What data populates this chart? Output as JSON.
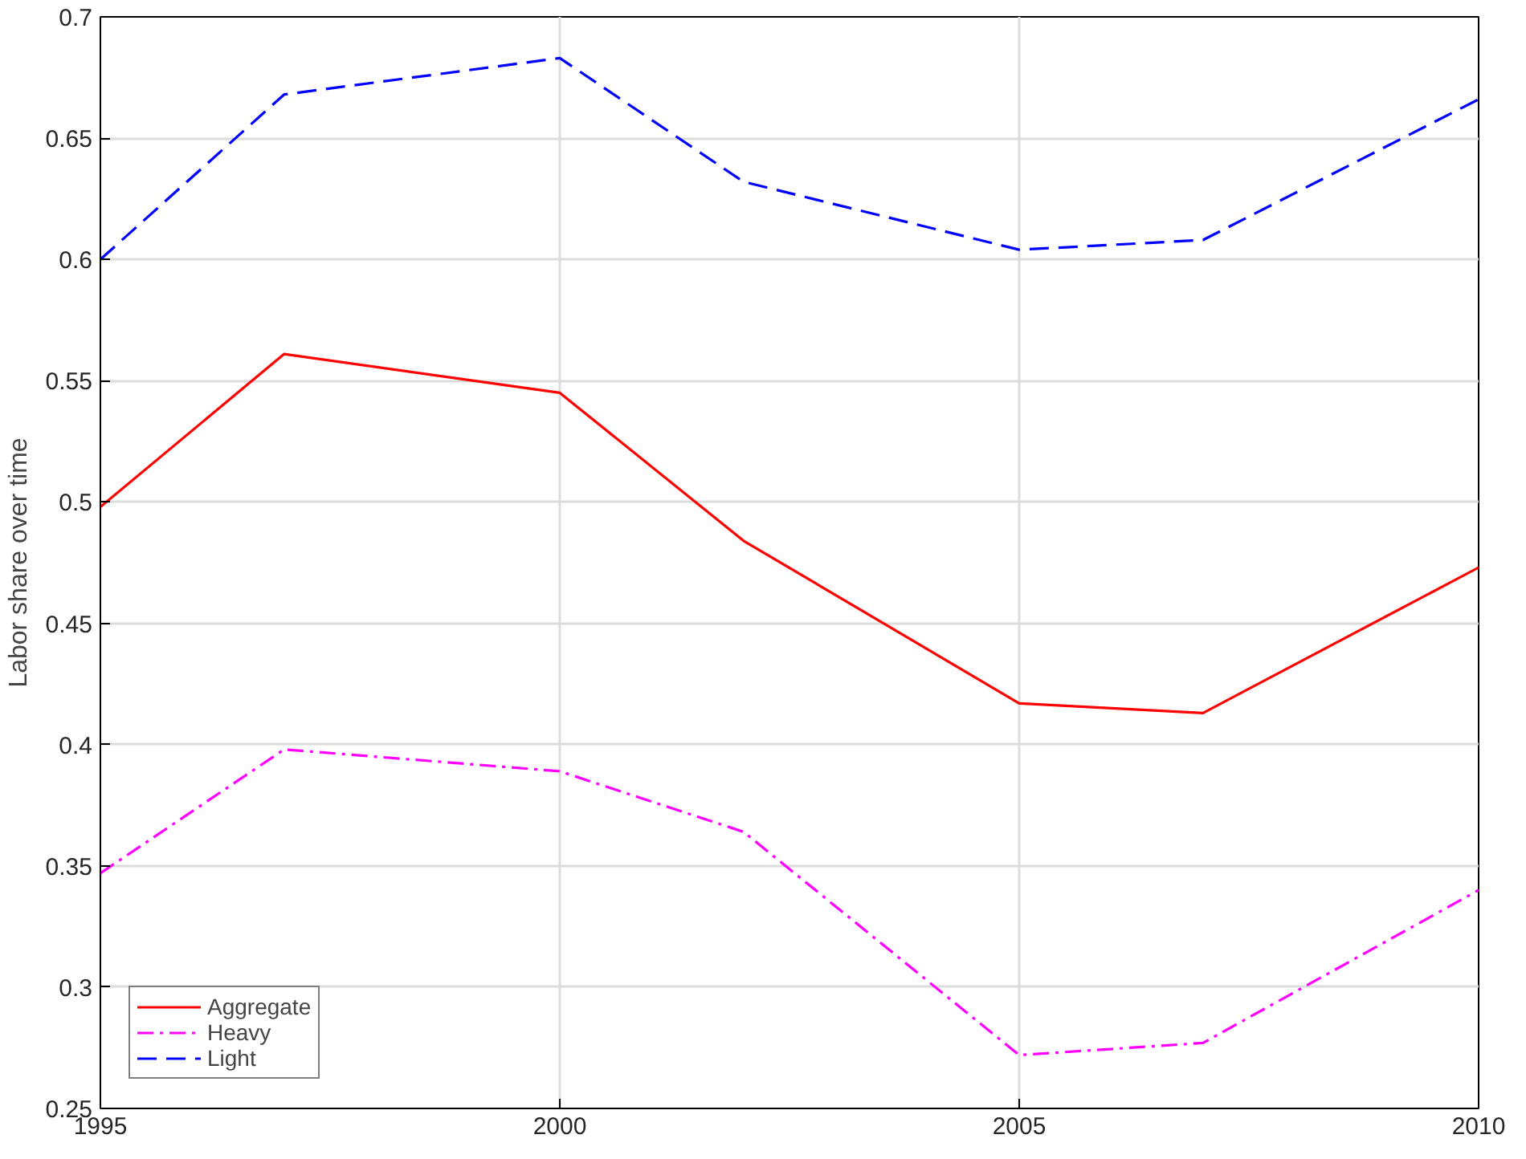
{
  "chart_data": {
    "type": "line",
    "ylabel": "Labor share over time",
    "x": [
      1995,
      1997,
      2000,
      2002,
      2005,
      2007,
      2010
    ],
    "series": [
      {
        "name": "Aggregate",
        "color": "#ff0000",
        "line_style": "solid",
        "values": [
          0.498,
          0.561,
          0.545,
          0.484,
          0.417,
          0.413,
          0.473
        ]
      },
      {
        "name": "Heavy",
        "color": "#ff00ff",
        "line_style": "dashdot",
        "values": [
          0.347,
          0.398,
          0.389,
          0.364,
          0.272,
          0.277,
          0.34
        ]
      },
      {
        "name": "Light",
        "color": "#0000ff",
        "line_style": "dashed",
        "values": [
          0.6,
          0.668,
          0.683,
          0.632,
          0.604,
          0.608,
          0.666
        ]
      }
    ],
    "xlim": [
      1995,
      2010
    ],
    "xticks": [
      1995,
      2000,
      2005,
      2010
    ],
    "ylim": [
      0.25,
      0.7
    ],
    "yticks": [
      0.25,
      0.3,
      0.35,
      0.4,
      0.45,
      0.5,
      0.55,
      0.6,
      0.65,
      0.7
    ],
    "grid": true,
    "legend": "bottom left",
    "marker": "none"
  }
}
